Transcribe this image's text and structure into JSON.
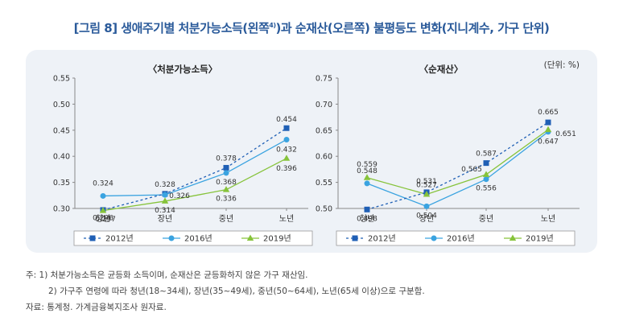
{
  "figure": {
    "title_main": "[그림 8] 생애주기별 처분가능소득(왼쪽",
    "title_sup": "4)",
    "title_rest": ")과 순재산(오른쪽) 불평등도 변화(지니계수, 가구 단위)",
    "unit_note": "(단위: %)"
  },
  "colors": {
    "title": "#2a5a9a",
    "s2012": "#1f5fb5",
    "s2016": "#3aa3e0",
    "s2019": "#86c33a",
    "panel_bg": "#eef2f7"
  },
  "chart_data": [
    {
      "type": "line",
      "title": "〈처분가능소득〉",
      "categories": [
        "청년",
        "장년",
        "중년",
        "노년"
      ],
      "ylim": [
        0.3,
        0.55
      ],
      "yticks": [
        "0.30",
        "0.35",
        "0.40",
        "0.45",
        "0.50",
        "0.55"
      ],
      "series": [
        {
          "name": "2012년",
          "values": [
            0.297,
            0.328,
            0.378,
            0.454
          ],
          "labels": [
            "0.297",
            "0.328",
            "0.378",
            "0.454"
          ]
        },
        {
          "name": "2016년",
          "values": [
            0.324,
            0.326,
            0.368,
            0.432
          ],
          "labels": [
            "0.324",
            "0.326",
            "0.368",
            "0.432"
          ]
        },
        {
          "name": "2019년",
          "values": [
            0.296,
            0.314,
            0.336,
            0.396
          ],
          "labels": [
            "0.296",
            "0.314",
            "0.336",
            "0.396"
          ]
        }
      ]
    },
    {
      "type": "line",
      "title": "〈순재산〉",
      "categories": [
        "청년",
        "장년",
        "중년",
        "노년"
      ],
      "ylim": [
        0.5,
        0.75
      ],
      "yticks": [
        "0.50",
        "0.55",
        "0.60",
        "0.65",
        "0.70",
        "0.75"
      ],
      "series": [
        {
          "name": "2012년",
          "values": [
            0.498,
            0.531,
            0.587,
            0.665
          ],
          "labels": [
            "0.498",
            "0.531",
            "0.587",
            "0.665"
          ]
        },
        {
          "name": "2016년",
          "values": [
            0.548,
            0.504,
            0.556,
            0.647
          ],
          "labels": [
            "0.548",
            "0.504",
            "0.556",
            "0.647"
          ]
        },
        {
          "name": "2019년",
          "values": [
            0.559,
            0.527,
            0.565,
            0.651
          ],
          "labels": [
            "0.559",
            "0.527",
            "0.565",
            "0.651"
          ]
        }
      ]
    }
  ],
  "notes": {
    "note1": "주: 1) 처분가능소득은 균등화 소득이며, 순재산은 균등화하지 않은 가구 재산임.",
    "note2": "2) 가구주 연령에 따라 청년(18~34세), 장년(35~49세), 중년(50~64세), 노년(65세 이상)으로 구분함.",
    "source": "자료: 통계청. 가계금융복지조사 원자료."
  }
}
